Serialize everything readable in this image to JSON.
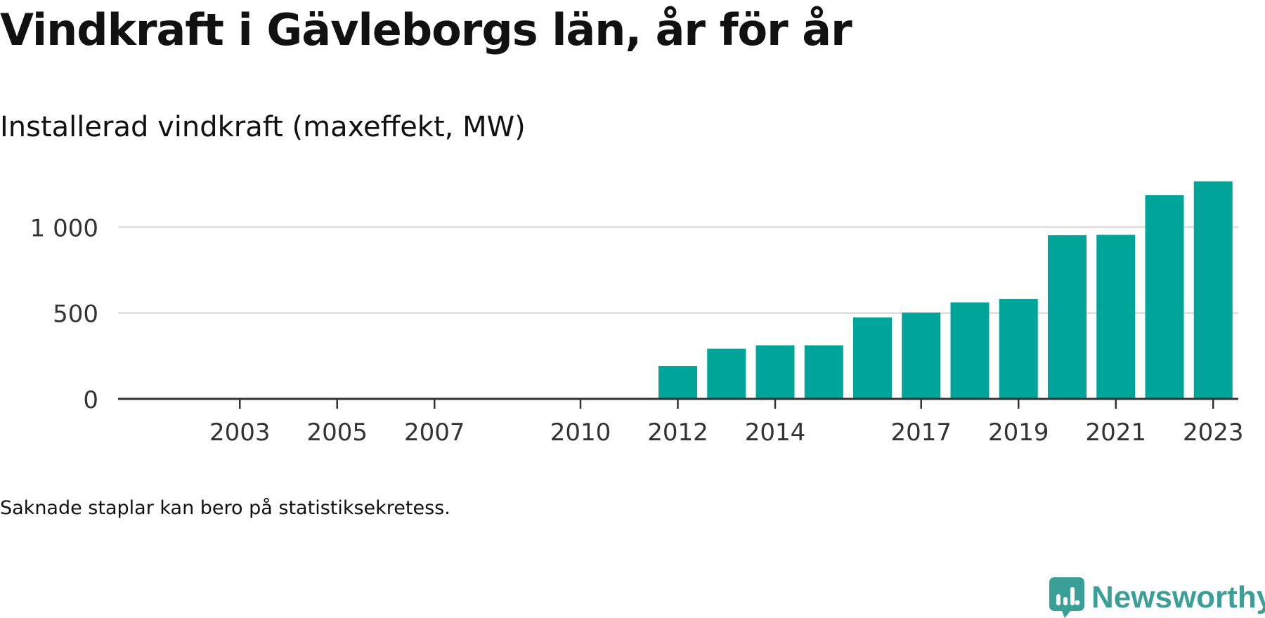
{
  "title": "Vindkraft i Gävleborgs län, år för år",
  "subtitle": "Installerad vindkraft (maxeffekt, MW)",
  "note": "Saknade staplar kan bero på statistiksekretess.",
  "brand": {
    "name": "Newsworthy",
    "color": "#3a9f96",
    "icon": "newsworthy-logo-icon"
  },
  "colors": {
    "bar": "#00a499",
    "grid": "#dcdcdc",
    "axis": "#333333",
    "tick_text": "#333333"
  },
  "chart_data": {
    "type": "bar",
    "title": "Vindkraft i Gävleborgs län, år för år",
    "subtitle": "Installerad vindkraft (maxeffekt, MW)",
    "xlabel": "",
    "ylabel": "",
    "categories": [
      "2002",
      "2003",
      "2004",
      "2005",
      "2006",
      "2007",
      "2008",
      "2009",
      "2010",
      "2011",
      "2012",
      "2013",
      "2014",
      "2015",
      "2016",
      "2017",
      "2018",
      "2019",
      "2020",
      "2021",
      "2022",
      "2023"
    ],
    "values": [
      null,
      null,
      null,
      null,
      null,
      null,
      null,
      null,
      5,
      5,
      192,
      292,
      312,
      312,
      474,
      502,
      562,
      581,
      953,
      955,
      1186,
      1266
    ],
    "x_tick_labels": [
      "2003",
      "2005",
      "2007",
      "2010",
      "2012",
      "2014",
      "2017",
      "2019",
      "2021",
      "2023"
    ],
    "y_ticks": [
      0,
      500,
      1000
    ],
    "y_tick_labels": [
      "0",
      "500",
      "1 000"
    ],
    "ylim": [
      0,
      1300
    ],
    "grid": true,
    "legend": "none"
  }
}
